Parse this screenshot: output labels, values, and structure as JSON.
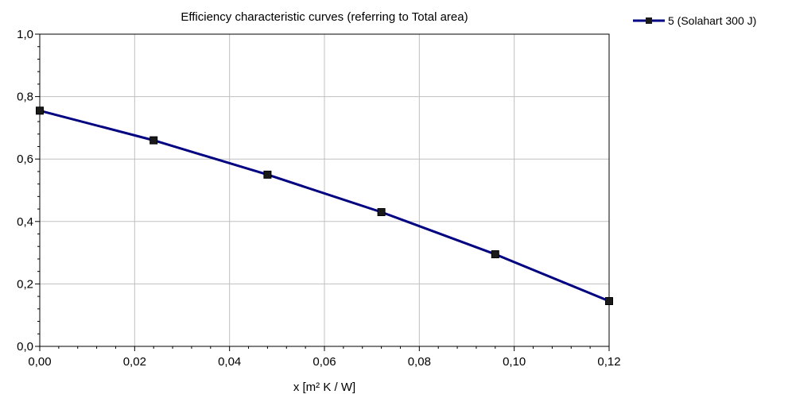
{
  "chart_data": {
    "type": "line",
    "title": "Efficiency characteristic curves (referring to Total area)",
    "xlabel": "x [m² K / W]",
    "ylabel": "",
    "xlim": [
      0,
      0.12
    ],
    "ylim": [
      0,
      1.0
    ],
    "x_ticks": [
      "0,00",
      "0,02",
      "0,04",
      "0,06",
      "0,08",
      "0,10",
      "0,12"
    ],
    "y_ticks": [
      "0,0",
      "0,2",
      "0,4",
      "0,6",
      "0,8",
      "1,0"
    ],
    "grid": true,
    "legend_position": "top-right",
    "series": [
      {
        "name": "5 (Solahart 300 J)",
        "color": "#000080",
        "marker": "square",
        "points": [
          {
            "x": 0.0,
            "y": 0.755
          },
          {
            "x": 0.024,
            "y": 0.66
          },
          {
            "x": 0.048,
            "y": 0.55
          },
          {
            "x": 0.072,
            "y": 0.43
          },
          {
            "x": 0.096,
            "y": 0.295
          },
          {
            "x": 0.12,
            "y": 0.145
          }
        ]
      }
    ]
  }
}
